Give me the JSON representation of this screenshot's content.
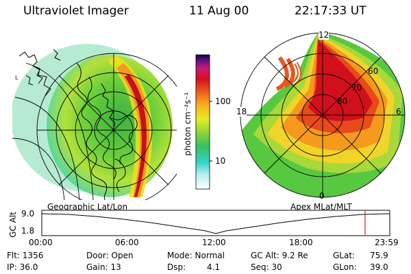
{
  "header": {
    "title": "Ultraviolet Imager",
    "date": "11 Aug 00",
    "time": "22:17:33 UT"
  },
  "colorbar": {
    "label": "photon cm⁻²s⁻¹",
    "ticks": [
      "100",
      "10"
    ]
  },
  "polar": {
    "mlt_labels": [
      "12",
      "18",
      "6",
      "0"
    ],
    "lat_labels": [
      "60",
      "70",
      "80"
    ]
  },
  "panel_labels": {
    "left": "Geographic Lat/Lon",
    "right": "Apex MLat/MLT"
  },
  "timeline": {
    "ylabel": "GC Alt",
    "yticks": [
      "9.0",
      "1.8"
    ],
    "xticks": [
      "00:00",
      "06:00",
      "12:00",
      "18:00",
      "23:59"
    ]
  },
  "info": {
    "flt": "Flt: 1356",
    "ip": "IP: 36.0",
    "door": "Door: Open",
    "gain": "Gain: 13",
    "mode": "Mode: Normal",
    "dsp_label": "Dsp:",
    "dsp_value": "4.1",
    "gc_alt": "GC Alt: 9.2 Re",
    "seq": "Seq: 30",
    "glat_label": "GLat:",
    "glat_value": "75.9",
    "glon_label": "GLon:",
    "glon_value": "39.0"
  },
  "colors": {
    "cursor": "#d42020"
  }
}
